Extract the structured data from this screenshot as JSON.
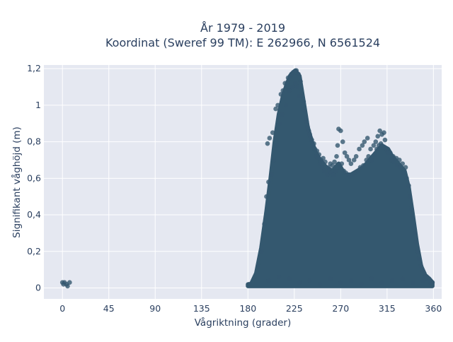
{
  "chart_data": {
    "type": "scatter",
    "title": [
      "År 1979 - 2019",
      "Koordinat (Sweref 99 TM): E 262966, N 6561524"
    ],
    "xlabel": "Vågriktning (grader)",
    "ylabel": "Signifikant våghöjd (m)",
    "xlim": [
      -18,
      368
    ],
    "ylim": [
      -0.06,
      1.22
    ],
    "xticks": [
      0,
      45,
      90,
      135,
      180,
      225,
      270,
      315,
      360
    ],
    "xtick_labels": [
      "0",
      "45",
      "90",
      "135",
      "180",
      "225",
      "270",
      "315",
      "360"
    ],
    "yticks": [
      0,
      0.2,
      0.4,
      0.6,
      0.8,
      1,
      1.2
    ],
    "ytick_labels": [
      "0",
      "0,2",
      "0,4",
      "0,6",
      "0,8",
      "1",
      "1,2"
    ],
    "grid": true,
    "legend": "none",
    "colors": {
      "marker": "#34586f",
      "plot_bg": "#e5e8f1",
      "grid": "#ffffff"
    },
    "envelope_upper": [
      [
        180,
        0.02
      ],
      [
        183,
        0.02
      ],
      [
        188,
        0.08
      ],
      [
        193,
        0.22
      ],
      [
        198,
        0.42
      ],
      [
        202,
        0.6
      ],
      [
        206,
        0.8
      ],
      [
        210,
        0.95
      ],
      [
        214,
        1.05
      ],
      [
        218,
        1.12
      ],
      [
        222,
        1.17
      ],
      [
        226,
        1.19
      ],
      [
        230,
        1.16
      ],
      [
        234,
        1.02
      ],
      [
        238,
        0.88
      ],
      [
        242,
        0.8
      ],
      [
        246,
        0.74
      ],
      [
        250,
        0.7
      ],
      [
        256,
        0.66
      ],
      [
        262,
        0.64
      ],
      [
        268,
        0.68
      ],
      [
        274,
        0.62
      ],
      [
        280,
        0.62
      ],
      [
        286,
        0.64
      ],
      [
        292,
        0.66
      ],
      [
        298,
        0.7
      ],
      [
        304,
        0.74
      ],
      [
        310,
        0.78
      ],
      [
        316,
        0.76
      ],
      [
        320,
        0.72
      ],
      [
        326,
        0.68
      ],
      [
        332,
        0.64
      ],
      [
        336,
        0.55
      ],
      [
        340,
        0.4
      ],
      [
        344,
        0.24
      ],
      [
        348,
        0.12
      ],
      [
        352,
        0.07
      ],
      [
        356,
        0.05
      ],
      [
        359,
        0.03
      ]
    ],
    "points": [
      [
        0,
        0.03
      ],
      [
        1,
        0.02
      ],
      [
        2,
        0.03
      ],
      [
        4,
        0.02
      ],
      [
        5,
        0.01
      ],
      [
        7,
        0.03
      ],
      [
        181,
        0.02
      ],
      [
        199,
        0.79
      ],
      [
        201,
        0.82
      ],
      [
        204,
        0.85
      ],
      [
        207,
        0.98
      ],
      [
        209,
        1.0
      ],
      [
        212,
        1.06
      ],
      [
        214,
        1.08
      ],
      [
        216,
        1.12
      ],
      [
        219,
        1.15
      ],
      [
        221,
        1.16
      ],
      [
        224,
        1.18
      ],
      [
        227,
        1.19
      ],
      [
        229,
        1.17
      ],
      [
        231,
        1.13
      ],
      [
        232,
        1.05
      ],
      [
        234,
        1.02
      ],
      [
        235,
        0.97
      ],
      [
        237,
        0.91
      ],
      [
        239,
        0.86
      ],
      [
        240,
        0.84
      ],
      [
        242,
        0.81
      ],
      [
        244,
        0.79
      ],
      [
        245,
        0.76
      ],
      [
        247,
        0.75
      ],
      [
        249,
        0.73
      ],
      [
        251,
        0.7
      ],
      [
        253,
        0.71
      ],
      [
        255,
        0.69
      ],
      [
        258,
        0.66
      ],
      [
        260,
        0.68
      ],
      [
        262,
        0.67
      ],
      [
        264,
        0.69
      ],
      [
        266,
        0.72
      ],
      [
        267,
        0.78
      ],
      [
        268,
        0.87
      ],
      [
        270,
        0.86
      ],
      [
        272,
        0.8
      ],
      [
        274,
        0.74
      ],
      [
        276,
        0.72
      ],
      [
        278,
        0.7
      ],
      [
        280,
        0.68
      ],
      [
        283,
        0.7
      ],
      [
        285,
        0.72
      ],
      [
        288,
        0.76
      ],
      [
        291,
        0.78
      ],
      [
        293,
        0.8
      ],
      [
        296,
        0.82
      ],
      [
        299,
        0.76
      ],
      [
        302,
        0.78
      ],
      [
        304,
        0.8
      ],
      [
        306,
        0.83
      ],
      [
        308,
        0.86
      ],
      [
        310,
        0.84
      ],
      [
        312,
        0.85
      ],
      [
        313,
        0.81
      ],
      [
        315,
        0.75
      ],
      [
        318,
        0.74
      ],
      [
        321,
        0.72
      ],
      [
        324,
        0.71
      ],
      [
        327,
        0.7
      ],
      [
        330,
        0.68
      ],
      [
        333,
        0.66
      ],
      [
        336,
        0.56
      ],
      [
        339,
        0.43
      ],
      [
        342,
        0.3
      ],
      [
        345,
        0.2
      ],
      [
        348,
        0.12
      ],
      [
        351,
        0.08
      ],
      [
        353,
        0.06
      ],
      [
        355,
        0.05
      ],
      [
        357,
        0.03
      ],
      [
        359,
        0.03
      ],
      [
        190,
        0.12
      ],
      [
        193,
        0.2
      ],
      [
        196,
        0.35
      ],
      [
        198,
        0.5
      ],
      [
        200,
        0.58
      ],
      [
        203,
        0.62
      ],
      [
        205,
        0.7
      ],
      [
        208,
        0.78
      ],
      [
        211,
        0.9
      ],
      [
        213,
        0.95
      ],
      [
        217,
        1.0
      ],
      [
        220,
        1.08
      ],
      [
        223,
        1.1
      ],
      [
        226,
        1.12
      ],
      [
        228,
        1.1
      ],
      [
        230,
        1.05
      ],
      [
        233,
        0.98
      ],
      [
        236,
        0.93
      ],
      [
        238,
        0.88
      ],
      [
        241,
        0.82
      ],
      [
        243,
        0.78
      ],
      [
        246,
        0.72
      ],
      [
        248,
        0.71
      ],
      [
        250,
        0.68
      ],
      [
        252,
        0.66
      ],
      [
        254,
        0.64
      ],
      [
        257,
        0.62
      ],
      [
        259,
        0.64
      ],
      [
        261,
        0.63
      ],
      [
        263,
        0.62
      ],
      [
        265,
        0.64
      ],
      [
        269,
        0.66
      ],
      [
        271,
        0.68
      ],
      [
        273,
        0.64
      ],
      [
        275,
        0.63
      ],
      [
        277,
        0.62
      ],
      [
        279,
        0.61
      ],
      [
        282,
        0.62
      ],
      [
        284,
        0.63
      ],
      [
        287,
        0.64
      ],
      [
        289,
        0.66
      ],
      [
        292,
        0.67
      ],
      [
        295,
        0.7
      ],
      [
        297,
        0.72
      ],
      [
        300,
        0.7
      ],
      [
        303,
        0.73
      ],
      [
        305,
        0.76
      ],
      [
        307,
        0.78
      ],
      [
        309,
        0.79
      ],
      [
        311,
        0.77
      ],
      [
        314,
        0.76
      ],
      [
        316,
        0.74
      ],
      [
        319,
        0.7
      ],
      [
        322,
        0.69
      ],
      [
        325,
        0.67
      ],
      [
        328,
        0.66
      ],
      [
        331,
        0.63
      ],
      [
        334,
        0.6
      ],
      [
        337,
        0.5
      ],
      [
        340,
        0.38
      ],
      [
        343,
        0.25
      ],
      [
        346,
        0.16
      ],
      [
        349,
        0.1
      ],
      [
        352,
        0.06
      ],
      [
        354,
        0.05
      ],
      [
        356,
        0.04
      ],
      [
        200,
        0.04
      ],
      [
        210,
        0.06
      ],
      [
        220,
        0.05
      ],
      [
        230,
        0.03
      ],
      [
        240,
        0.04
      ],
      [
        250,
        0.02
      ],
      [
        260,
        0.05
      ],
      [
        270,
        0.03
      ],
      [
        280,
        0.04
      ],
      [
        290,
        0.02
      ],
      [
        300,
        0.05
      ],
      [
        310,
        0.03
      ],
      [
        320,
        0.04
      ],
      [
        330,
        0.05
      ],
      [
        340,
        0.03
      ],
      [
        350,
        0.04
      ]
    ]
  }
}
